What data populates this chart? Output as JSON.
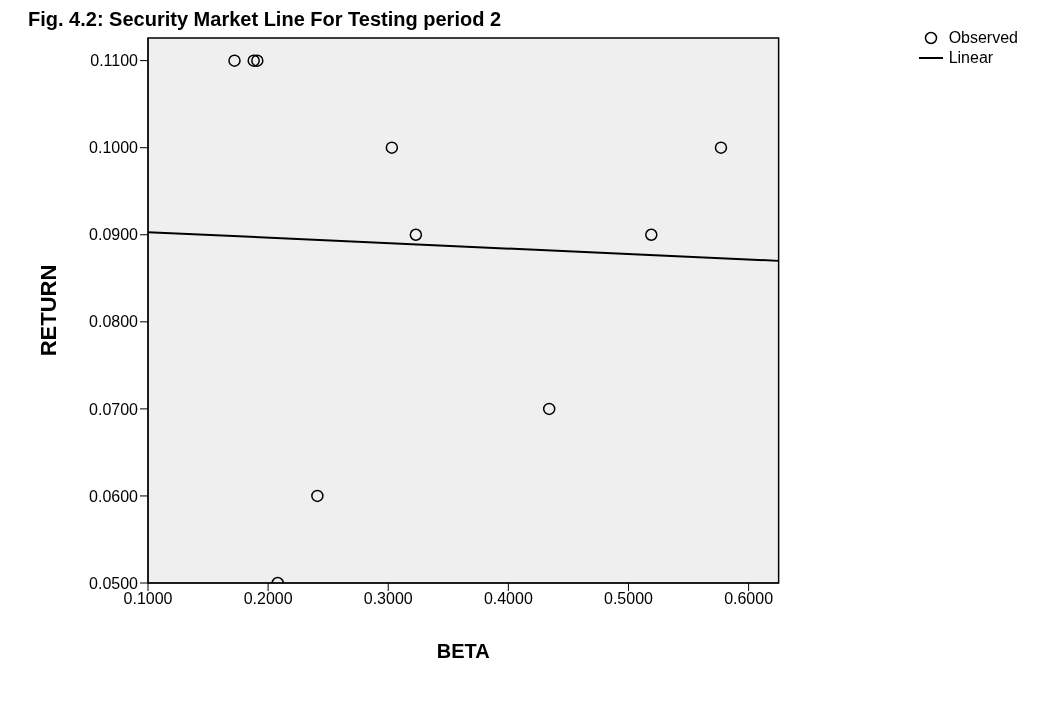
{
  "chart_data": {
    "type": "scatter",
    "title": "Fig. 4.2: Security Market Line For Testing period 2",
    "xlabel": "BETA",
    "ylabel": "RETURN",
    "series": [
      {
        "name": "Observed",
        "color": "#000000",
        "marker": "circle",
        "x": [
          0.172,
          0.188,
          0.191,
          0.303,
          0.323,
          0.208,
          0.241,
          0.434,
          0.519,
          0.577
        ],
        "values": [
          0.11,
          0.11,
          0.11,
          0.1,
          0.09,
          0.05,
          0.06,
          0.07,
          0.09,
          0.1
        ]
      },
      {
        "name": "Linear",
        "type": "line",
        "color": "#000000",
        "line_style": "solid",
        "marker": "none",
        "x": [
          0.1,
          0.625
        ],
        "values": [
          0.0903,
          0.087
        ]
      }
    ],
    "xlim": [
      0.1,
      0.625
    ],
    "ylim": [
      0.05,
      0.1126
    ],
    "xticks": [
      {
        "value": 0.1,
        "label": "0.1000"
      },
      {
        "value": 0.2,
        "label": "0.2000"
      },
      {
        "value": 0.3,
        "label": "0.3000"
      },
      {
        "value": 0.4,
        "label": "0.4000"
      },
      {
        "value": 0.5,
        "label": "0.5000"
      },
      {
        "value": 0.6,
        "label": "0.6000"
      }
    ],
    "yticks": [
      {
        "value": 0.05,
        "label": "0.0500"
      },
      {
        "value": 0.06,
        "label": "0.0600"
      },
      {
        "value": 0.07,
        "label": "0.0700"
      },
      {
        "value": 0.08,
        "label": "0.0800"
      },
      {
        "value": 0.09,
        "label": "0.0900"
      },
      {
        "value": 0.1,
        "label": "0.1000"
      },
      {
        "value": 0.11,
        "label": "0.1100"
      }
    ],
    "grid": false,
    "legend": "top right"
  }
}
